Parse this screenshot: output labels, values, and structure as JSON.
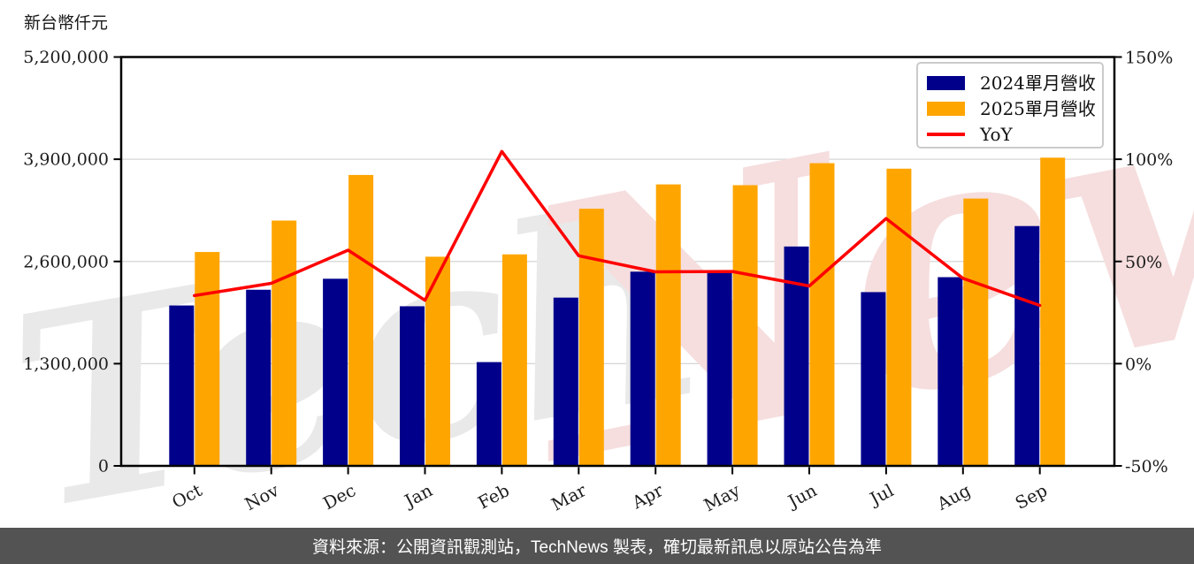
{
  "chart_data": {
    "type": "bar+line",
    "unit_label": "新台幣仟元",
    "categories": [
      "Oct",
      "Nov",
      "Dec",
      "Jan",
      "Feb",
      "Mar",
      "Apr",
      "May",
      "Jun",
      "Jul",
      "Aug",
      "Sep"
    ],
    "series": [
      {
        "name": "2024單月營收",
        "type": "bar",
        "color": "#00008B",
        "values": [
          2040000,
          2240000,
          2380000,
          2030000,
          1320000,
          2140000,
          2470000,
          2460000,
          2790000,
          2210000,
          2400000,
          3050000
        ]
      },
      {
        "name": "2025單月營收",
        "type": "bar",
        "color": "#FFA500",
        "values": [
          2720000,
          3120000,
          3700000,
          2660000,
          2690000,
          3270000,
          3580000,
          3570000,
          3850000,
          3780000,
          3400000,
          3920000
        ]
      },
      {
        "name": "YoY",
        "type": "line",
        "color": "#FF0000",
        "axis": "right",
        "values_pct": [
          33.3,
          39.3,
          55.5,
          31.0,
          103.8,
          52.8,
          44.9,
          45.1,
          38.0,
          71.0,
          41.7,
          28.5
        ]
      }
    ],
    "left_axis": {
      "tick_labels": [
        "0",
        "1,300,000",
        "2,600,000",
        "3,900,000",
        "5,200,000"
      ],
      "tick_values": [
        0,
        1300000,
        2600000,
        3900000,
        5200000
      ],
      "range": [
        0,
        5200000
      ]
    },
    "right_axis": {
      "tick_labels": [
        "-50%",
        "0%",
        "50%",
        "100%",
        "150%"
      ],
      "tick_values": [
        -50,
        0,
        50,
        100,
        150
      ],
      "range": [
        -50,
        150
      ]
    },
    "grid": "horizontal",
    "legend_position": "top-right"
  },
  "watermark": {
    "gray_text": "Tech",
    "pink_text": "News"
  },
  "footer": {
    "text": "資料來源：公開資訊觀測站，TechNews 製表，確切最新訊息以原站公告為準"
  },
  "colors": {
    "grid": "#d5d5d5",
    "axis": "#000000",
    "tick_label": "#1c1c1c",
    "footer_bg": "#535353",
    "watermark_gray": "#e9e9e9",
    "watermark_pink": "#f6dede"
  }
}
